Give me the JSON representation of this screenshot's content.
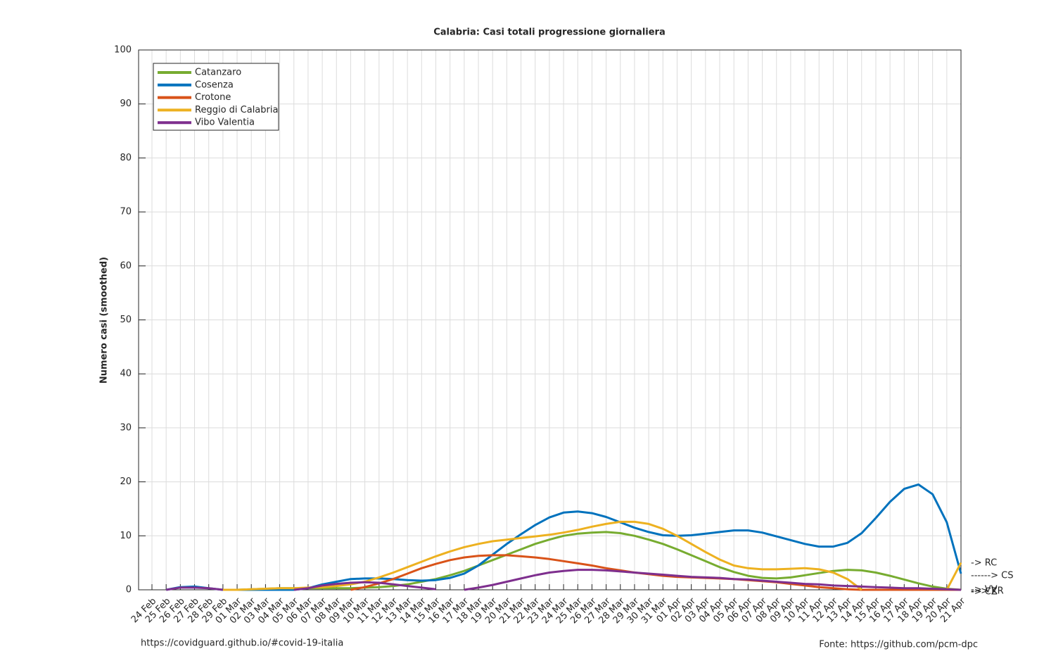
{
  "chart_data": {
    "type": "line",
    "title": "Calabria: Casi totali progressione giornaliera",
    "ylabel": "Numero casi (smoothed)",
    "categories": [
      "24 Feb",
      "25 Feb",
      "26 Feb",
      "27 Feb",
      "28 Feb",
      "29 Feb",
      "01 Mar",
      "02 Mar",
      "03 Mar",
      "04 Mar",
      "05 Mar",
      "06 Mar",
      "07 Mar",
      "08 Mar",
      "09 Mar",
      "10 Mar",
      "11 Mar",
      "12 Mar",
      "13 Mar",
      "14 Mar",
      "15 Mar",
      "16 Mar",
      "17 Mar",
      "18 Mar",
      "19 Mar",
      "20 Mar",
      "21 Mar",
      "22 Mar",
      "23 Mar",
      "24 Mar",
      "25 Mar",
      "26 Mar",
      "27 Mar",
      "28 Mar",
      "29 Mar",
      "30 Mar",
      "31 Mar",
      "01 Apr",
      "02 Apr",
      "03 Apr",
      "04 Apr",
      "05 Apr",
      "06 Apr",
      "07 Apr",
      "08 Apr",
      "09 Apr",
      "10 Apr",
      "11 Apr",
      "12 Apr",
      "13 Apr",
      "14 Apr",
      "15 Apr",
      "16 Apr",
      "17 Apr",
      "18 Apr",
      "19 Apr",
      "20 Apr",
      "21 Apr"
    ],
    "series": [
      {
        "name": "Catanzaro",
        "color": "#77ac30",
        "values": [
          null,
          null,
          null,
          null,
          null,
          null,
          0,
          0.1,
          0.2,
          0.3,
          0.3,
          0.3,
          0.3,
          0.3,
          0.3,
          0.4,
          0.5,
          0.7,
          1,
          1.5,
          2,
          2.7,
          3.5,
          4.5,
          5.5,
          6.5,
          7.5,
          8.5,
          9.3,
          10,
          10.4,
          10.6,
          10.7,
          10.5,
          10,
          9.3,
          8.5,
          7.5,
          6.4,
          5.3,
          4.2,
          3.3,
          2.6,
          2.2,
          2.1,
          2.3,
          2.7,
          3.1,
          3.5,
          3.7,
          3.6,
          3.2,
          2.6,
          1.9,
          1.2,
          0.6,
          0.2,
          0
        ]
      },
      {
        "name": "Cosenza",
        "color": "#0072bd",
        "values": [
          null,
          0,
          0.5,
          0.6,
          0.3,
          0,
          0,
          0,
          0,
          0,
          0,
          0.3,
          1,
          1.5,
          2,
          2.1,
          2.1,
          2,
          1.8,
          1.7,
          1.8,
          2.2,
          3,
          4.5,
          6.5,
          8.5,
          10.3,
          12,
          13.4,
          14.3,
          14.5,
          14.2,
          13.5,
          12.5,
          11.5,
          10.7,
          10.1,
          10,
          10.1,
          10.4,
          10.7,
          11,
          11,
          10.6,
          9.9,
          9.2,
          8.5,
          8,
          8,
          8.7,
          10.5,
          13.3,
          16.3,
          18.7,
          19.5,
          17.7,
          12.5,
          3
        ]
      },
      {
        "name": "Crotone",
        "color": "#d95319",
        "values": [
          null,
          null,
          null,
          null,
          null,
          null,
          null,
          null,
          null,
          null,
          null,
          null,
          null,
          null,
          0,
          0.5,
          1.2,
          2,
          3,
          4,
          4.8,
          5.5,
          6,
          6.3,
          6.4,
          6.4,
          6.2,
          6,
          5.7,
          5.3,
          4.9,
          4.5,
          4,
          3.6,
          3.2,
          2.9,
          2.6,
          2.4,
          2.3,
          2.2,
          2.1,
          2,
          1.8,
          1.6,
          1.4,
          1.1,
          0.8,
          0.5,
          0.3,
          0.1,
          0,
          0,
          0,
          0,
          0,
          0,
          0,
          0
        ]
      },
      {
        "name": "Reggio di Calabria",
        "color": "#edb120",
        "values": [
          0,
          null,
          null,
          null,
          null,
          0,
          0,
          0.1,
          0.2,
          0.3,
          0.3,
          0.4,
          0.5,
          0.7,
          1,
          1.5,
          2.3,
          3.2,
          4.2,
          5.2,
          6.2,
          7.1,
          7.9,
          8.5,
          9,
          9.3,
          9.6,
          9.9,
          10.2,
          10.6,
          11.1,
          11.7,
          12.2,
          12.6,
          12.6,
          12.2,
          11.3,
          10,
          8.5,
          7,
          5.6,
          4.5,
          4,
          3.8,
          3.8,
          3.9,
          4,
          3.8,
          3.2,
          2,
          0,
          null,
          null,
          null,
          null,
          null,
          0,
          5
        ]
      },
      {
        "name": "Vibo Valentia",
        "color": "#7e2f8e",
        "values": [
          null,
          0,
          0.4,
          0.4,
          0.3,
          0,
          null,
          null,
          null,
          null,
          0,
          0.3,
          0.8,
          1.1,
          1.3,
          1.4,
          1.3,
          1,
          0.7,
          0.4,
          0.1,
          null,
          0,
          0.4,
          0.9,
          1.5,
          2.1,
          2.7,
          3.2,
          3.5,
          3.7,
          3.7,
          3.6,
          3.4,
          3.2,
          3,
          2.8,
          2.6,
          2.4,
          2.3,
          2.2,
          2,
          1.9,
          1.7,
          1.5,
          1.3,
          1.1,
          1,
          0.8,
          0.7,
          0.6,
          0.5,
          0.4,
          0.3,
          0.3,
          0.2,
          0.1,
          0
        ]
      }
    ],
    "ylim": [
      0,
      100
    ],
    "yticks": [
      0,
      10,
      20,
      30,
      40,
      50,
      60,
      70,
      80,
      90,
      100
    ],
    "grid": true,
    "legend": "upper left",
    "annotations": [
      "-> RC",
      "------> CS",
      "-> CZ",
      "-> VV",
      "---> KR"
    ],
    "footer_left": "https://covidguard.github.io/#covid-19-italia",
    "footer_right": "Fonte: https://github.com/pcm-dpc"
  }
}
